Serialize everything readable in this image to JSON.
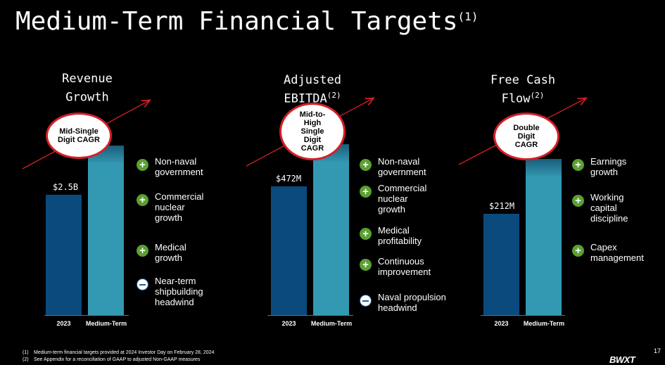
{
  "title": "Medium-Term Financial Targets",
  "title_note": "(1)",
  "panels": [
    {
      "title_line1": "Revenue",
      "title_line2": "Growth",
      "title_note": "",
      "target_label": "Mid-Single Digit CAGR",
      "base_value": "$2.5B",
      "x_labels": [
        "2023",
        "Medium-Term"
      ],
      "drivers": [
        {
          "sign": "plus",
          "text": "Non-naval\ngovernment"
        },
        {
          "sign": "plus",
          "text": "Commercial\nnuclear\ngrowth"
        },
        {
          "sign": "plus",
          "text": "Medical\ngrowth"
        },
        {
          "sign": "minus",
          "text": "Near-term\nshipbuilding\nheadwind"
        }
      ]
    },
    {
      "title_line1": "Adjusted",
      "title_line2": "EBITDA",
      "title_note": "(2)",
      "target_label": "Mid-to-High Single Digit CAGR",
      "base_value": "$472M",
      "x_labels": [
        "2023",
        "Medium-Term"
      ],
      "drivers": [
        {
          "sign": "plus",
          "text": "Non-naval\ngovernment"
        },
        {
          "sign": "plus",
          "text": "Commercial\nnuclear\ngrowth"
        },
        {
          "sign": "plus",
          "text": "Medical\nprofitability"
        },
        {
          "sign": "plus",
          "text": "Continuous\nimprovement"
        },
        {
          "sign": "minus",
          "text": "Naval propulsion\nheadwind"
        }
      ]
    },
    {
      "title_line1": "Free Cash",
      "title_line2": "Flow",
      "title_note": "(2)",
      "target_label": "Double Digit CAGR",
      "base_value": "$212M",
      "x_labels": [
        "2023",
        "Medium-Term"
      ],
      "drivers": [
        {
          "sign": "plus",
          "text": "Earnings\ngrowth"
        },
        {
          "sign": "plus",
          "text": "Working\ncapital\ndiscipline"
        },
        {
          "sign": "plus",
          "text": "Capex\nmanagement"
        }
      ]
    }
  ],
  "footnotes": [
    {
      "num": "(1)",
      "text": "Medium-term financial targets provided at 2024 Investor Day on February 28, 2024"
    },
    {
      "num": "(2)",
      "text": "See Appendix for a reconciliation of GAAP to adjusted Non-GAAP measures"
    }
  ],
  "page_number": "17",
  "logo_text": "BWXT",
  "colors": {
    "accent_red": "#d42027",
    "plus_green": "#5aa032",
    "bar_dark": "#0b4a7d",
    "bar_light": "#3399b3"
  }
}
